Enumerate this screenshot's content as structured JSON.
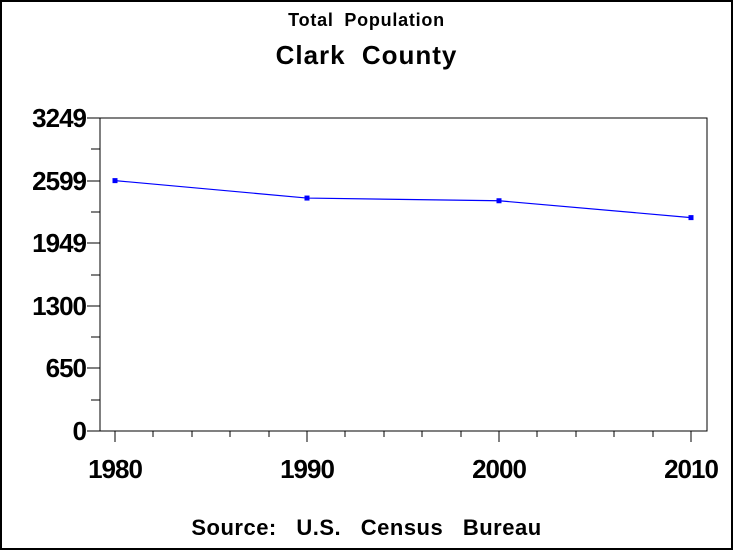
{
  "chart_data": {
    "type": "line",
    "title": "Total Population",
    "subtitle": "Clark County",
    "footnote": "Source: U.S. Census Bureau",
    "x": [
      1980,
      1990,
      2000,
      2010
    ],
    "x_tick_labels": [
      "1980",
      "1990",
      "2000",
      "2010"
    ],
    "x_minor_tick_step": 2,
    "xlim": [
      1980,
      2010
    ],
    "series": [
      {
        "name": "Total Population",
        "values": [
          2599,
          2418,
          2390,
          2215
        ]
      }
    ],
    "ylim": [
      0,
      3249
    ],
    "y_ticks": [
      0,
      650,
      1300,
      1949,
      2599,
      3249
    ],
    "y_tick_labels": [
      "0",
      "650",
      "1300",
      "1949",
      "2599",
      "3249"
    ],
    "grid": false,
    "legend": false,
    "line_color": "#0000FF",
    "marker": "square",
    "axis_color": "#000000",
    "background": "#FFFFFF"
  }
}
